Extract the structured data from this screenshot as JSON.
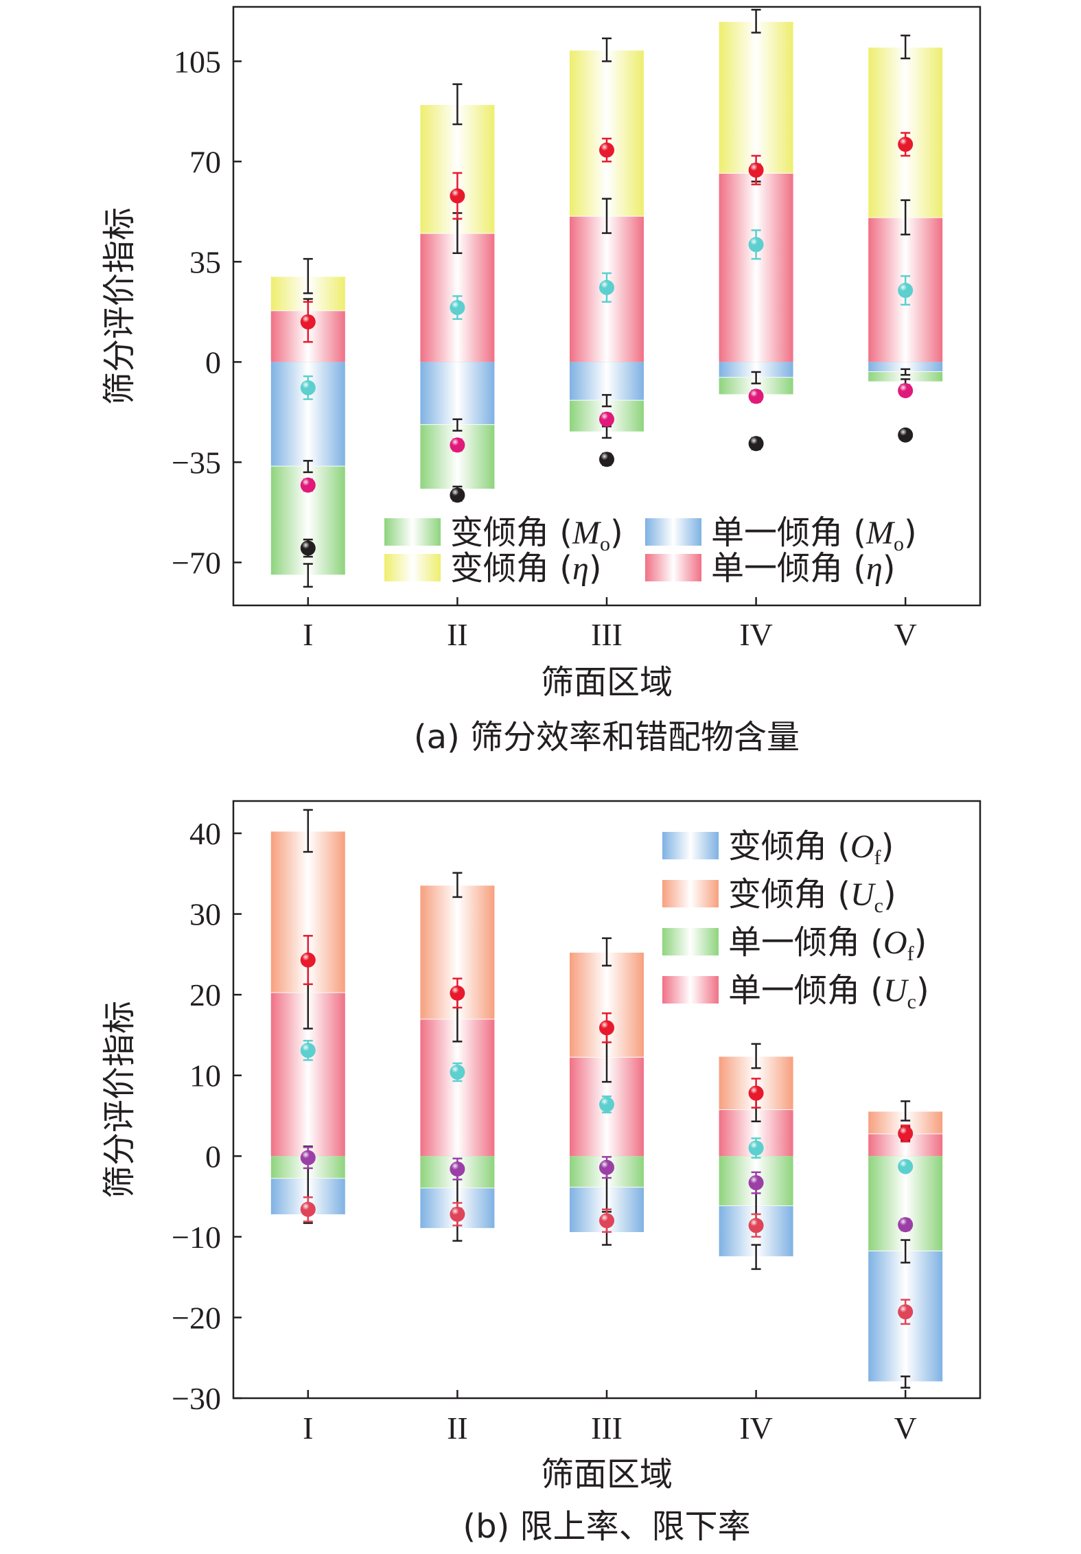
{
  "chart_data": [
    {
      "type": "bar",
      "caption": "(a) 筛分效率和错配物含量",
      "xlabel": "筛面区域",
      "ylabel": "筛分评价指标",
      "ylim": [
        -85,
        124
      ],
      "yticks": [
        -70,
        -35,
        0,
        35,
        70,
        105
      ],
      "ytick_labels": [
        "−70",
        "−35",
        "0",
        "35",
        "70",
        "105"
      ],
      "categories": [
        "I",
        "II",
        "III",
        "IV",
        "V"
      ],
      "legend_position": "bottom-right",
      "legend": [
        {
          "id": "vmo",
          "text": "变倾角 (",
          "sym": "M",
          "sub": "o",
          "close": ")",
          "color": "#8fd47e"
        },
        {
          "id": "smo",
          "text": "单一倾角 (",
          "sym": "M",
          "sub": "o",
          "close": ")",
          "color": "#7fb2e3"
        },
        {
          "id": "veta",
          "text": "变倾角 (",
          "sym": "η",
          "sub": "",
          "close": ")",
          "color": "#eeee6f"
        },
        {
          "id": "seta",
          "text": "单一倾角 (",
          "sym": "η",
          "sub": "",
          "close": ")",
          "color": "#f07186"
        }
      ],
      "bars": [
        {
          "series": "单一倾角 (η)",
          "color": "#f07186",
          "bottom": [
            0,
            0,
            0,
            0,
            0
          ],
          "top": [
            18,
            45,
            51,
            66,
            50.5
          ]
        },
        {
          "series": "变倾角 (η)",
          "color": "#eeee6f",
          "bottom": [
            18,
            45,
            51,
            66,
            50.5
          ],
          "top": [
            30,
            90,
            109,
            119,
            110
          ]
        },
        {
          "series": "单一倾角 (Mo)",
          "color": "#7fb2e3",
          "bottom": [
            0,
            0,
            0,
            0,
            0
          ],
          "top": [
            -36.5,
            -22,
            -13.5,
            -5.5,
            -3.5
          ]
        },
        {
          "series": "变倾角 (Mo)",
          "color": "#8fd47e",
          "bottom": [
            -36.5,
            -22,
            -13.5,
            -5.5,
            -3.5
          ],
          "top": [
            -74.5,
            -44.5,
            -24.5,
            -11.5,
            -7
          ]
        }
      ],
      "points": [
        {
          "color": "#e8192c",
          "values": [
            14,
            58,
            74,
            67,
            76
          ],
          "err": [
            7,
            8,
            4,
            5,
            4
          ]
        },
        {
          "color": "#5ccfcf",
          "values": [
            -9,
            19,
            26,
            41,
            25
          ],
          "err": [
            4,
            4,
            5,
            5,
            5
          ]
        },
        {
          "color": "#e0197a",
          "values": [
            -43,
            -29,
            -20,
            -12,
            -10
          ],
          "err": [
            2,
            2,
            2,
            2,
            1
          ]
        },
        {
          "color": "#231f20",
          "values": [
            -65,
            -46.5,
            -34,
            -28.5,
            -25.5
          ],
          "err": [
            3,
            2,
            2,
            2,
            1
          ]
        }
      ],
      "whiskers": [
        {
          "values": [
            30,
            90,
            109,
            119,
            110
          ],
          "err": [
            6,
            7,
            4,
            4,
            4
          ]
        },
        {
          "values": [
            18,
            45,
            51,
            66,
            50.5
          ],
          "err": [
            4,
            7,
            6,
            3,
            6
          ]
        },
        {
          "values": [
            -36.5,
            -22,
            -13.5,
            -5.5,
            -3.5
          ],
          "err": [
            2,
            2,
            2,
            2,
            1
          ]
        },
        {
          "values": [
            -74.5,
            -44.5,
            -24.5,
            -11.5,
            -7
          ],
          "err": [
            4,
            1,
            2,
            1,
            1
          ]
        }
      ]
    },
    {
      "type": "bar",
      "caption": "(b) 限上率、限下率",
      "xlabel": "筛面区域",
      "ylabel": "筛分评价指标",
      "ylim": [
        -30,
        44
      ],
      "yticks": [
        -30,
        -20,
        -10,
        0,
        10,
        20,
        30,
        40
      ],
      "ytick_labels": [
        "−30",
        "−20",
        "−10",
        "0",
        "10",
        "20",
        "30",
        "40"
      ],
      "categories": [
        "I",
        "II",
        "III",
        "IV",
        "V"
      ],
      "legend_position": "top-right",
      "legend": [
        {
          "id": "vof",
          "text": "变倾角 (",
          "sym": "O",
          "sub": "f",
          "close": ")",
          "color": "#7fb2e3"
        },
        {
          "id": "vuc",
          "text": "变倾角 (",
          "sym": "U",
          "sub": "c",
          "close": ")",
          "color": "#f7a07f"
        },
        {
          "id": "sof",
          "text": "单一倾角 (",
          "sym": "O",
          "sub": "f",
          "close": ")",
          "color": "#8fd47e"
        },
        {
          "id": "suc",
          "text": "单一倾角 (",
          "sym": "U",
          "sub": "c",
          "close": ")",
          "color": "#f07186"
        }
      ],
      "bars": [
        {
          "series": "单一倾角 (Uc)",
          "color": "#f07186",
          "bottom": [
            0,
            0,
            0,
            0,
            0
          ],
          "top": [
            20.3,
            17,
            12.3,
            5.8,
            2.8
          ]
        },
        {
          "series": "变倾角 (Uc)",
          "color": "#f7a07f",
          "bottom": [
            20.3,
            17,
            12.3,
            5.8,
            2.8
          ],
          "top": [
            40.3,
            33.6,
            25.3,
            12.4,
            5.6
          ]
        },
        {
          "series": "单一倾角 (Of)",
          "color": "#8fd47e",
          "bottom": [
            0,
            0,
            0,
            0,
            0
          ],
          "top": [
            -2.8,
            -4,
            -3.9,
            -6.2,
            -11.8
          ]
        },
        {
          "series": "变倾角 (Of)",
          "color": "#7fb2e3",
          "bottom": [
            -2.8,
            -4,
            -3.9,
            -6.2,
            -11.8
          ],
          "top": [
            -7.3,
            -9,
            -9.5,
            -12.5,
            -28
          ]
        }
      ],
      "points": [
        {
          "color": "#e8192c",
          "values": [
            24.3,
            20.2,
            15.9,
            7.8,
            2.8
          ],
          "err": [
            3,
            1.8,
            1.8,
            1.8,
            1
          ]
        },
        {
          "color": "#5ccfcf",
          "values": [
            13.1,
            10.4,
            6.4,
            1,
            -1.3
          ],
          "err": [
            1.2,
            1.1,
            1,
            1.2,
            0.5
          ]
        },
        {
          "color": "#9b3fa6",
          "values": [
            -0.2,
            -1.6,
            -1.4,
            -3.3,
            -8.5
          ],
          "err": [
            1.3,
            1.3,
            1.3,
            1.3,
            0.7
          ]
        },
        {
          "color": "#e04458",
          "values": [
            -6.6,
            -7.2,
            -8,
            -8.6,
            -19.3
          ],
          "err": [
            1.5,
            1.4,
            1.4,
            1.4,
            1.5
          ]
        }
      ],
      "whiskers": [
        {
          "values": [
            40.3,
            33.6,
            25.3,
            12.4,
            5.6
          ],
          "err": [
            2.6,
            1.5,
            1.7,
            1.5,
            1.2
          ]
        },
        {
          "values": [
            20.3,
            17,
            12.3,
            5.8,
            2.8
          ],
          "err": [
            4.5,
            2.8,
            3.1,
            1.5,
            0.8
          ]
        },
        {
          "values": [
            -2.8,
            -4,
            -3.9,
            -6.2,
            -11.8
          ],
          "err": [
            4,
            2.5,
            3,
            2.8,
            1.4
          ]
        },
        {
          "values": [
            -7.3,
            -9,
            -9.5,
            -12.5,
            -28
          ],
          "err": [
            1,
            1.5,
            1.5,
            1.5,
            0.7
          ]
        }
      ]
    }
  ]
}
